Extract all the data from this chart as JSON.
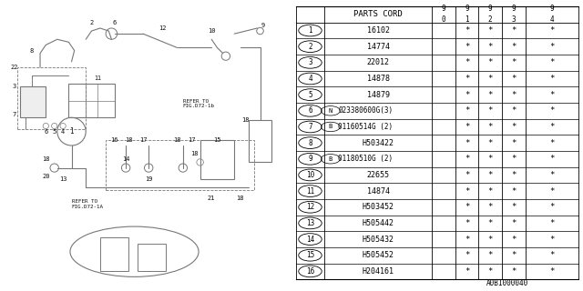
{
  "figure_id": "A0B1000040",
  "table": {
    "header_col": "PARTS CORD",
    "year_cols": [
      "9\n0",
      "9\n1",
      "9\n2",
      "9\n3",
      "9\n4"
    ],
    "rows": [
      {
        "num": "1",
        "code": "16102",
        "special": false,
        "prefix": ""
      },
      {
        "num": "2",
        "code": "14774",
        "special": false,
        "prefix": ""
      },
      {
        "num": "3",
        "code": "22012",
        "special": false,
        "prefix": ""
      },
      {
        "num": "4",
        "code": "14878",
        "special": false,
        "prefix": ""
      },
      {
        "num": "5",
        "code": "14879",
        "special": false,
        "prefix": ""
      },
      {
        "num": "6",
        "code": "023380600G(3)",
        "special": true,
        "prefix": "N"
      },
      {
        "num": "7",
        "code": "01160514G (2)",
        "special": true,
        "prefix": "B"
      },
      {
        "num": "8",
        "code": "H503422",
        "special": false,
        "prefix": ""
      },
      {
        "num": "9",
        "code": "01180510G (2)",
        "special": true,
        "prefix": "B"
      },
      {
        "num": "10",
        "code": "22655",
        "special": false,
        "prefix": ""
      },
      {
        "num": "11",
        "code": "14874",
        "special": false,
        "prefix": ""
      },
      {
        "num": "12",
        "code": "H503452",
        "special": false,
        "prefix": ""
      },
      {
        "num": "13",
        "code": "H505442",
        "special": false,
        "prefix": ""
      },
      {
        "num": "14",
        "code": "H505432",
        "special": false,
        "prefix": ""
      },
      {
        "num": "15",
        "code": "H505452",
        "special": false,
        "prefix": ""
      },
      {
        "num": "16",
        "code": "H204161",
        "special": false,
        "prefix": ""
      }
    ]
  },
  "bg_color": "#ffffff",
  "line_color": "#000000",
  "diagram_gray": "#777777",
  "diagram_light": "#aaaaaa"
}
